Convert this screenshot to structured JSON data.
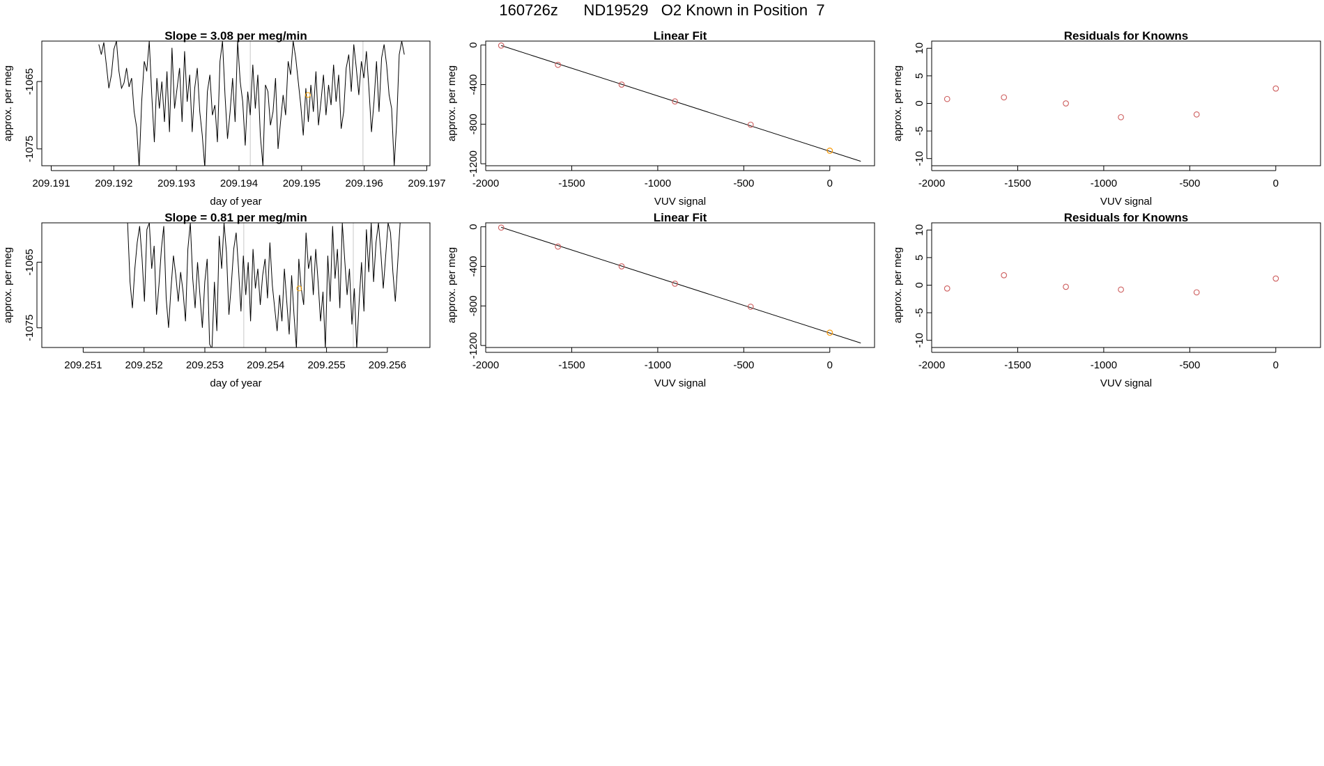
{
  "page_title": "160726z      ND19529   O2 Known in Position  7",
  "colors": {
    "line": "#000000",
    "point": "#cd5c5c",
    "highlight": "#ffa500",
    "vline": "#c8c8c8"
  },
  "chart_data": [
    {
      "id": "ts1",
      "type": "line",
      "title": "Slope =  3.08  per meg/min",
      "xlabel": "day of year",
      "ylabel": "approx. per meg",
      "xlim": [
        209.19085,
        209.19705
      ],
      "ylim": [
        -1077.5,
        -1059.0
      ],
      "xticks": [
        209.191,
        209.192,
        209.193,
        209.194,
        209.195,
        209.196,
        209.197
      ],
      "xtick_labels": [
        "209.191",
        "209.192",
        "209.193",
        "209.194",
        "209.195",
        "209.196",
        "209.197"
      ],
      "yticks": [
        -1065,
        -1075
      ],
      "ytick_labels": [
        "-1065",
        "-1075"
      ],
      "vlines": [
        209.19418,
        209.19598
      ],
      "highlight_point": {
        "x": 209.1951,
        "y": -1067.0
      },
      "series_x_range": [
        209.19176,
        209.19664
      ],
      "values": [
        -1059.5,
        -1061.0,
        -1059.2,
        -1062.5,
        -1066.0,
        -1064.0,
        -1060.2,
        -1059.0,
        -1063.5,
        -1066.0,
        -1065.2,
        -1063.0,
        -1065.8,
        -1064.5,
        -1069.5,
        -1071.8,
        -1077.8,
        -1068.0,
        -1062.0,
        -1063.5,
        -1059.0,
        -1067.0,
        -1074.0,
        -1064.5,
        -1069.0,
        -1065.0,
        -1071.0,
        -1063.5,
        -1072.5,
        -1060.0,
        -1069.0,
        -1066.0,
        -1063.0,
        -1071.0,
        -1060.5,
        -1068.0,
        -1064.0,
        -1072.5,
        -1066.0,
        -1063.0,
        -1069.5,
        -1073.0,
        -1077.8,
        -1066.5,
        -1064.0,
        -1070.0,
        -1068.5,
        -1074.0,
        -1062.0,
        -1059.0,
        -1067.0,
        -1073.5,
        -1069.5,
        -1064.5,
        -1071.0,
        -1059.0,
        -1065.0,
        -1068.0,
        -1074.5,
        -1066.5,
        -1070.0,
        -1062.5,
        -1069.0,
        -1064.0,
        -1073.0,
        -1077.5,
        -1065.5,
        -1066.5,
        -1071.5,
        -1069.5,
        -1064.5,
        -1075.0,
        -1071.0,
        -1067.0,
        -1070.0,
        -1062.0,
        -1064.0,
        -1059.0,
        -1061.5,
        -1065.0,
        -1068.5,
        -1073.0,
        -1066.0,
        -1071.0,
        -1065.5,
        -1069.5,
        -1063.5,
        -1071.5,
        -1068.0,
        -1064.0,
        -1070.0,
        -1065.5,
        -1068.5,
        -1062.5,
        -1068.0,
        -1064.0,
        -1072.0,
        -1069.5,
        -1063.0,
        -1061.0,
        -1066.5,
        -1059.5,
        -1063.0,
        -1067.0,
        -1062.0,
        -1064.5,
        -1060.5,
        -1066.0,
        -1072.5,
        -1068.0,
        -1062.0,
        -1069.5,
        -1061.5,
        -1059.5,
        -1062.5,
        -1067.0,
        -1069.0,
        -1077.5,
        -1071.0,
        -1061.0,
        -1059.0,
        -1061.0
      ]
    },
    {
      "id": "fit1",
      "type": "scatter",
      "title": "Linear Fit",
      "xlabel": "VUV signal",
      "ylabel": "approx. per meg",
      "xlim": [
        -2000,
        260
      ],
      "ylim": [
        -1220,
        40
      ],
      "xticks": [
        -2000,
        -1500,
        -1000,
        -500,
        0
      ],
      "xtick_labels": [
        "-2000",
        "-1500",
        "-1000",
        "-500",
        "0"
      ],
      "yticks": [
        0,
        -400,
        -800,
        -1200
      ],
      "ytick_labels": [
        "0",
        "-400",
        "-800",
        "-1200"
      ],
      "fit_line": {
        "x": [
          -1910,
          180
        ],
        "y": [
          -5,
          -1175
        ]
      },
      "points": [
        {
          "x": -1910,
          "y": -5
        },
        {
          "x": -1580,
          "y": -200
        },
        {
          "x": -1210,
          "y": -400
        },
        {
          "x": -900,
          "y": -570
        },
        {
          "x": -460,
          "y": -805
        },
        {
          "x": 0,
          "y": -1068,
          "highlight": true
        }
      ]
    },
    {
      "id": "res1",
      "type": "scatter",
      "title": "Residuals for Knowns",
      "xlabel": "VUV signal",
      "ylabel": "approx. per meg",
      "xlim": [
        -2000,
        260
      ],
      "ylim": [
        -11.3,
        11.3
      ],
      "xticks": [
        -2000,
        -1500,
        -1000,
        -500,
        0
      ],
      "xtick_labels": [
        "-2000",
        "-1500",
        "-1000",
        "-500",
        "0"
      ],
      "yticks": [
        10,
        5,
        0,
        -5,
        -10
      ],
      "ytick_labels": [
        "10",
        "5",
        "0",
        "-5",
        "-10"
      ],
      "points": [
        {
          "x": -1910,
          "y": 0.8
        },
        {
          "x": -1580,
          "y": 1.1
        },
        {
          "x": -1220,
          "y": 0.0
        },
        {
          "x": -900,
          "y": -2.5
        },
        {
          "x": -460,
          "y": -2.0
        },
        {
          "x": 0,
          "y": 2.7
        }
      ]
    },
    {
      "id": "ts2",
      "type": "line",
      "title": "Slope =  0.81  per meg/min",
      "xlabel": "day of year",
      "ylabel": "approx. per meg",
      "xlim": [
        209.25032,
        209.2567
      ],
      "ylim": [
        -1078.0,
        -1059.0
      ],
      "xticks": [
        209.251,
        209.252,
        209.253,
        209.254,
        209.255,
        209.256
      ],
      "xtick_labels": [
        "209.251",
        "209.252",
        "209.253",
        "209.254",
        "209.255",
        "209.256"
      ],
      "yticks": [
        -1065,
        -1075
      ],
      "ytick_labels": [
        "-1065",
        "-1075"
      ],
      "vlines": [
        209.25364,
        209.25544
      ],
      "highlight_point": {
        "x": 209.25455,
        "y": -1069.0
      },
      "series_x_range": [
        209.25173,
        209.25621
      ],
      "values": [
        -1059.0,
        -1068.0,
        -1072.0,
        -1066.0,
        -1062.0,
        -1059.5,
        -1064.5,
        -1071.0,
        -1060.0,
        -1059.0,
        -1066.0,
        -1062.5,
        -1073.0,
        -1068.5,
        -1063.0,
        -1059.5,
        -1070.5,
        -1075.0,
        -1069.0,
        -1064.0,
        -1067.0,
        -1071.0,
        -1066.5,
        -1069.5,
        -1074.0,
        -1063.0,
        -1059.0,
        -1067.5,
        -1072.0,
        -1065.0,
        -1070.0,
        -1075.0,
        -1068.0,
        -1064.5,
        -1077.5,
        -1078.2,
        -1068.0,
        -1075.5,
        -1061.0,
        -1066.0,
        -1059.0,
        -1063.5,
        -1073.0,
        -1068.5,
        -1063.0,
        -1060.5,
        -1066.0,
        -1072.5,
        -1064.0,
        -1070.0,
        -1065.0,
        -1074.0,
        -1063.0,
        -1069.0,
        -1066.0,
        -1071.5,
        -1067.0,
        -1064.5,
        -1070.5,
        -1062.0,
        -1068.5,
        -1072.0,
        -1075.5,
        -1070.0,
        -1074.0,
        -1066.0,
        -1071.0,
        -1076.0,
        -1067.0,
        -1073.0,
        -1078.2,
        -1064.5,
        -1069.0,
        -1071.5,
        -1060.5,
        -1066.0,
        -1064.0,
        -1070.0,
        -1063.0,
        -1068.0,
        -1074.0,
        -1069.5,
        -1078.2,
        -1064.0,
        -1071.0,
        -1059.5,
        -1067.5,
        -1063.0,
        -1072.0,
        -1059.0,
        -1064.5,
        -1070.0,
        -1066.0,
        -1074.5,
        -1069.0,
        -1078.2,
        -1071.0,
        -1065.0,
        -1072.5,
        -1060.0,
        -1066.5,
        -1059.0,
        -1068.0,
        -1062.0,
        -1059.0,
        -1063.5,
        -1069.0,
        -1064.0,
        -1059.0,
        -1060.5,
        -1066.5,
        -1071.0,
        -1065.0,
        -1059.0
      ]
    },
    {
      "id": "fit2",
      "type": "scatter",
      "title": "Linear Fit",
      "xlabel": "VUV signal",
      "ylabel": "approx. per meg",
      "xlim": [
        -2000,
        260
      ],
      "ylim": [
        -1220,
        40
      ],
      "xticks": [
        -2000,
        -1500,
        -1000,
        -500,
        0
      ],
      "xtick_labels": [
        "-2000",
        "-1500",
        "-1000",
        "-500",
        "0"
      ],
      "yticks": [
        0,
        -400,
        -800,
        -1200
      ],
      "ytick_labels": [
        "0",
        "-400",
        "-800",
        "-1200"
      ],
      "fit_line": {
        "x": [
          -1910,
          180
        ],
        "y": [
          -5,
          -1175
        ]
      },
      "points": [
        {
          "x": -1910,
          "y": -8
        },
        {
          "x": -1580,
          "y": -200
        },
        {
          "x": -1210,
          "y": -400
        },
        {
          "x": -900,
          "y": -575
        },
        {
          "x": -460,
          "y": -808
        },
        {
          "x": 0,
          "y": -1070,
          "highlight": true
        }
      ]
    },
    {
      "id": "res2",
      "type": "scatter",
      "title": "Residuals for Knowns",
      "xlabel": "VUV signal",
      "ylabel": "approx. per meg",
      "xlim": [
        -2000,
        260
      ],
      "ylim": [
        -11.3,
        11.3
      ],
      "xticks": [
        -2000,
        -1500,
        -1000,
        -500,
        0
      ],
      "xtick_labels": [
        "-2000",
        "-1500",
        "-1000",
        "-500",
        "0"
      ],
      "yticks": [
        10,
        5,
        0,
        -5,
        -10
      ],
      "ytick_labels": [
        "10",
        "5",
        "0",
        "-5",
        "-10"
      ],
      "points": [
        {
          "x": -1910,
          "y": -0.6
        },
        {
          "x": -1580,
          "y": 1.8
        },
        {
          "x": -1220,
          "y": -0.3
        },
        {
          "x": -900,
          "y": -0.8
        },
        {
          "x": -460,
          "y": -1.3
        },
        {
          "x": 0,
          "y": 1.2
        }
      ]
    }
  ]
}
